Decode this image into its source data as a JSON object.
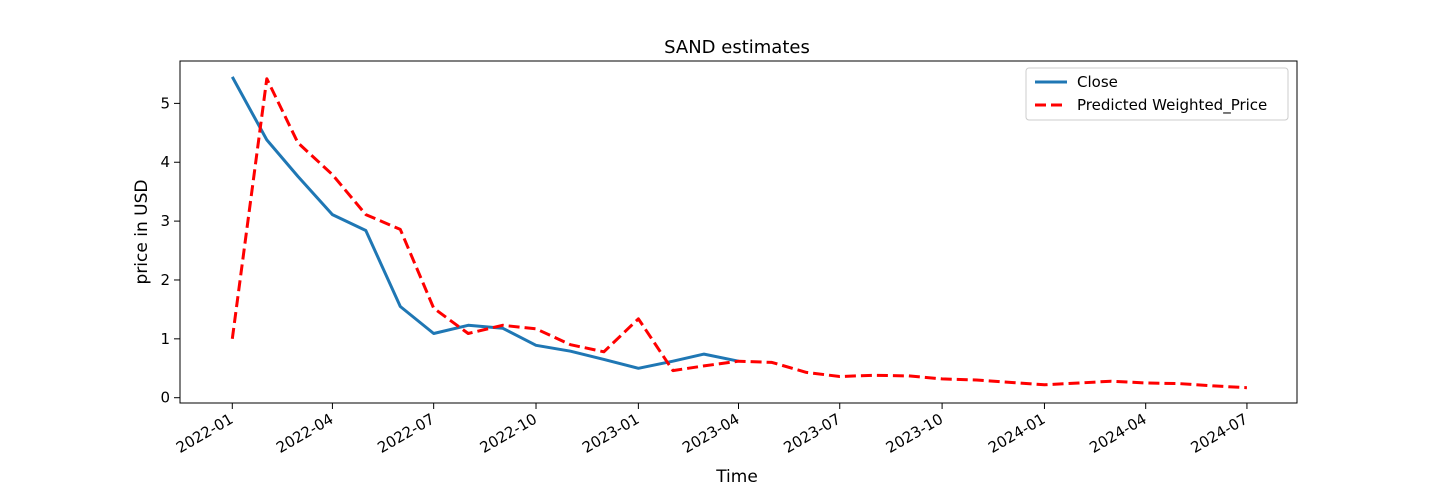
{
  "chart_data": {
    "type": "line",
    "title": "SAND estimates",
    "xlabel": "Time",
    "ylabel": "price in USD",
    "x_ticks": [
      "2022-01",
      "2022-04",
      "2022-07",
      "2022-10",
      "2023-01",
      "2023-04",
      "2023-07",
      "2023-10",
      "2024-01",
      "2024-04",
      "2024-07"
    ],
    "y_ticks": [
      0,
      1,
      2,
      3,
      4,
      5
    ],
    "xlim": [
      "2021-11-15",
      "2024-08-15"
    ],
    "ylim": [
      -0.09,
      5.72
    ],
    "grid": false,
    "legend_position": "top-right",
    "series": [
      {
        "name": "Close",
        "color": "#1f77b4",
        "style": "solid",
        "x": [
          "2022-01-01",
          "2022-02-01",
          "2022-03-01",
          "2022-04-01",
          "2022-05-01",
          "2022-06-01",
          "2022-07-01",
          "2022-08-01",
          "2022-09-01",
          "2022-10-01",
          "2022-11-01",
          "2022-12-01",
          "2023-01-01",
          "2023-02-01",
          "2023-03-01",
          "2023-04-01"
        ],
        "y": [
          5.45,
          4.38,
          3.76,
          3.11,
          2.84,
          1.55,
          1.09,
          1.23,
          1.18,
          0.89,
          0.79,
          0.65,
          0.5,
          0.62,
          0.74,
          0.62
        ]
      },
      {
        "name": "Predicted Weighted_Price",
        "color": "#ff0000",
        "style": "dashed",
        "x": [
          "2022-01-01",
          "2022-02-01",
          "2022-03-01",
          "2022-04-01",
          "2022-05-01",
          "2022-06-01",
          "2022-07-01",
          "2022-08-01",
          "2022-09-01",
          "2022-10-01",
          "2022-11-01",
          "2022-12-01",
          "2023-01-01",
          "2023-02-01",
          "2023-03-01",
          "2023-04-01",
          "2023-05-01",
          "2023-06-01",
          "2023-07-01",
          "2023-08-01",
          "2023-09-01",
          "2023-10-01",
          "2023-11-01",
          "2023-12-01",
          "2024-01-01",
          "2024-02-01",
          "2024-03-01",
          "2024-04-01",
          "2024-05-01",
          "2024-06-01",
          "2024-07-01"
        ],
        "y": [
          1.0,
          5.42,
          4.33,
          3.79,
          3.11,
          2.86,
          1.52,
          1.09,
          1.23,
          1.17,
          0.9,
          0.78,
          1.34,
          0.46,
          0.54,
          0.62,
          0.6,
          0.43,
          0.36,
          0.38,
          0.37,
          0.32,
          0.3,
          0.26,
          0.22,
          0.25,
          0.28,
          0.25,
          0.24,
          0.2,
          0.17
        ]
      }
    ]
  }
}
